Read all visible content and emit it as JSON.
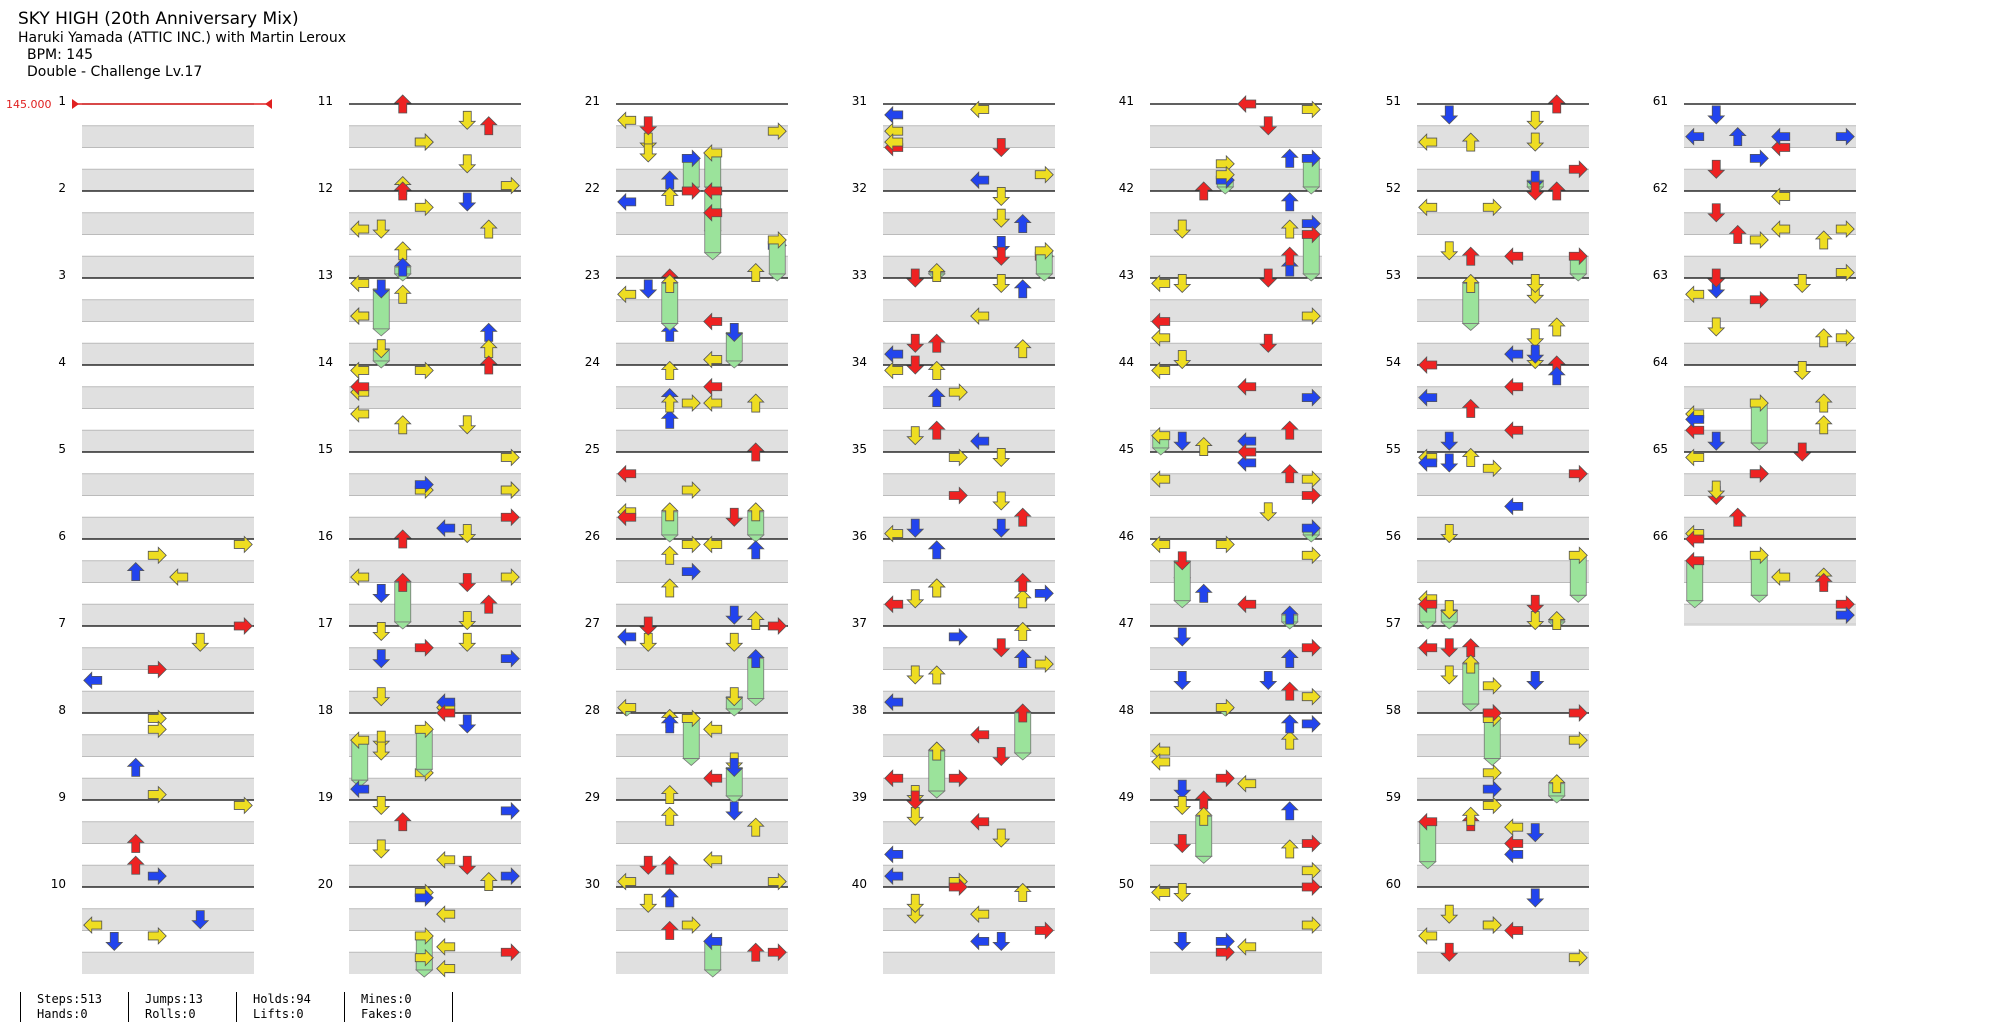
{
  "song": {
    "title": "SKY HIGH (20th Anniversary Mix)",
    "artist": "Haruki Yamada (ATTIC INC.) with Martin Leroux",
    "bpm_text": "BPM: 145",
    "difficulty_text": "Double - Challenge Lv.17"
  },
  "bpm_marker": {
    "label": "145.000",
    "measure": 1
  },
  "layout": {
    "columns": 7,
    "measures_per_column": 10,
    "total_measures": 66
  },
  "measures": [
    "1",
    "2",
    "3",
    "4",
    "5",
    "6",
    "7",
    "8",
    "9",
    "10",
    "11",
    "12",
    "13",
    "14",
    "15",
    "16",
    "17",
    "18",
    "19",
    "20",
    "21",
    "22",
    "23",
    "24",
    "25",
    "26",
    "27",
    "28",
    "29",
    "30",
    "31",
    "32",
    "33",
    "34",
    "35",
    "36",
    "37",
    "38",
    "39",
    "40",
    "41",
    "42",
    "43",
    "44",
    "45",
    "46",
    "47",
    "48",
    "49",
    "50",
    "51",
    "52",
    "53",
    "54",
    "55",
    "56",
    "57",
    "58",
    "59",
    "60",
    "61",
    "62",
    "63",
    "64",
    "65",
    "66"
  ],
  "colors": {
    "quarter": "#ee2222",
    "eighth": "#2244ee",
    "sixteenth": "#eedd22",
    "other": "#cc33cc",
    "hold": "#9be39b",
    "stripe": "#e0e0e0",
    "bpm": "#e02020"
  },
  "stats": {
    "steps": "Steps:513",
    "hands": "Hands:0",
    "jumps": "Jumps:13",
    "rolls": "Rolls:0",
    "holds": "Holds:94",
    "lifts": "Lifts:0",
    "mines": "Mines:0",
    "fakes": "Fakes:0"
  }
}
